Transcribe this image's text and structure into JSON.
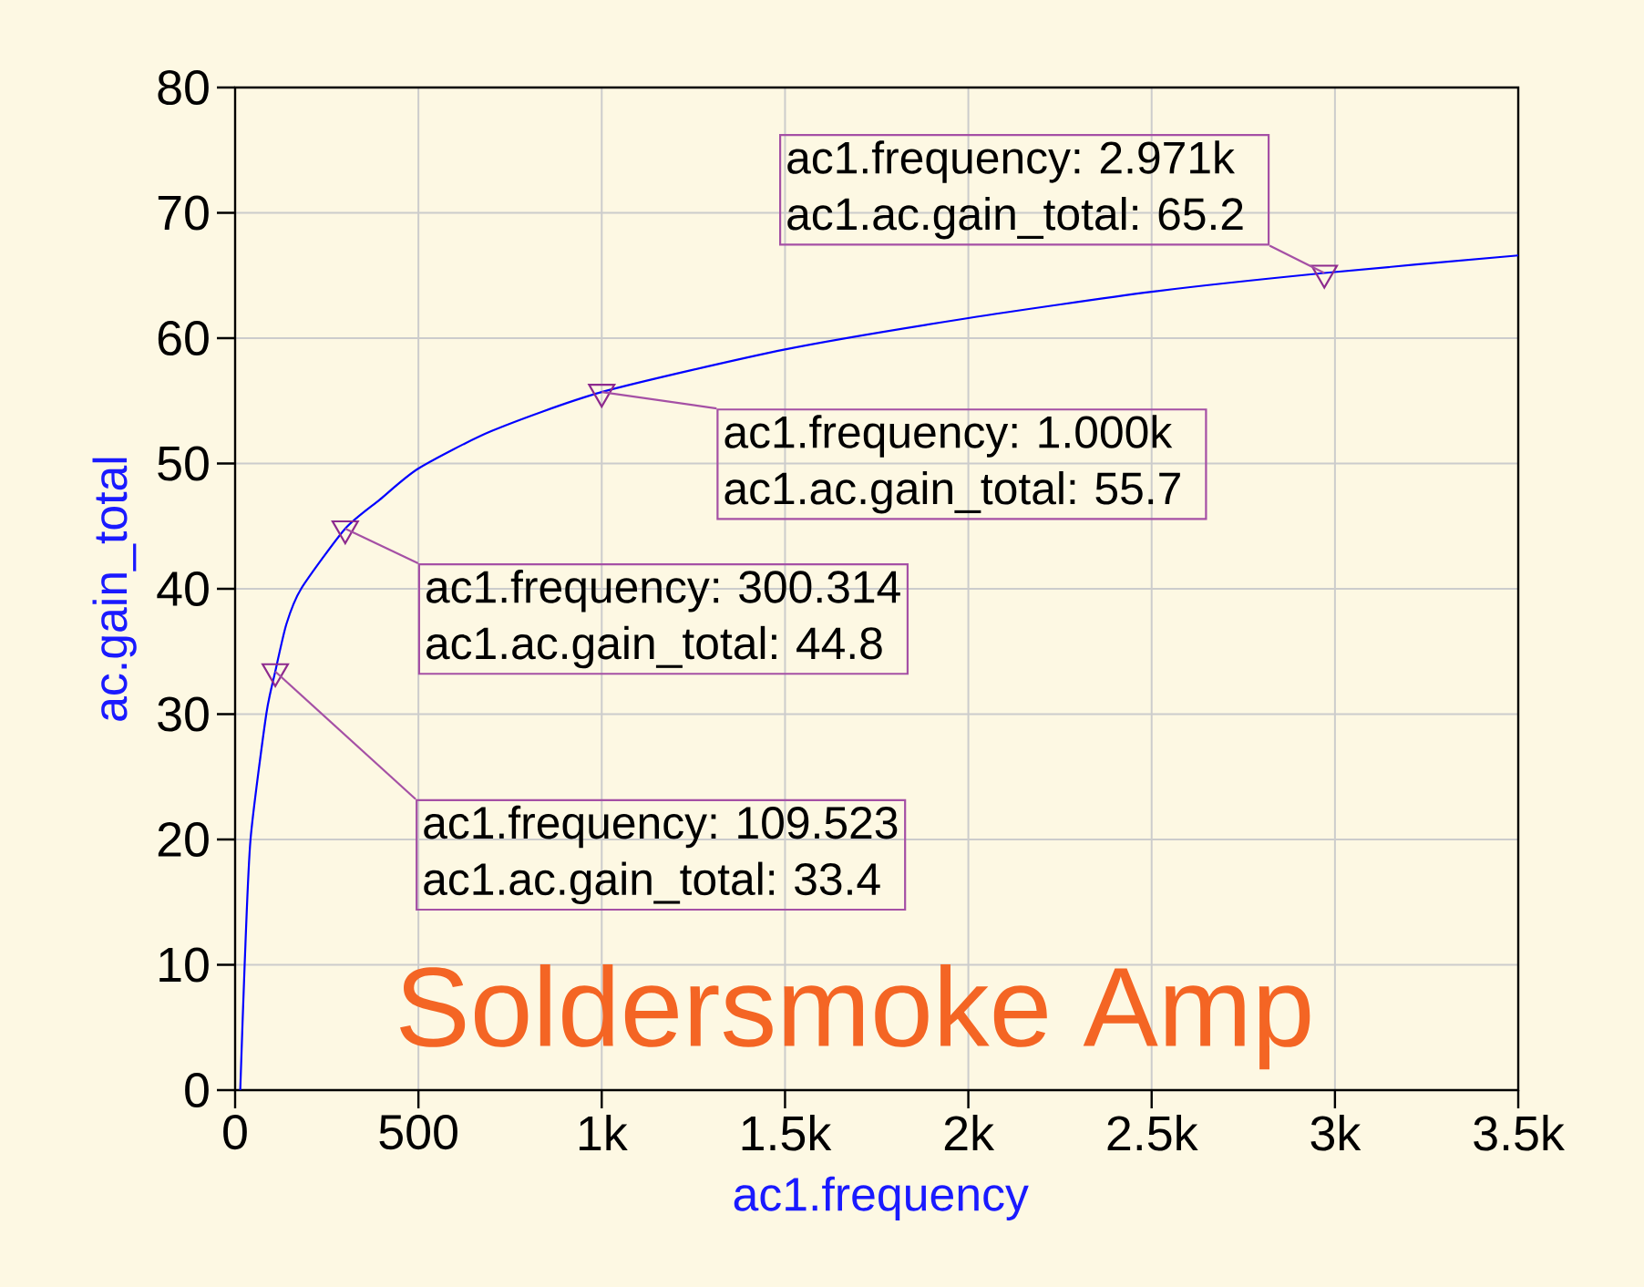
{
  "chart_data": {
    "type": "line",
    "title": "Soldersmoke Amp",
    "xlabel": "ac1.frequency",
    "ylabel": "ac.gain_total",
    "xlim": [
      0,
      3500
    ],
    "ylim": [
      0,
      80
    ],
    "xticks": [
      0,
      500,
      {
        "value": 1000,
        "label": "1k"
      },
      {
        "value": 1500,
        "label": "1.5k"
      },
      {
        "value": 2000,
        "label": "2k"
      },
      {
        "value": 2500,
        "label": "2.5k"
      },
      {
        "value": 3000,
        "label": "3k"
      },
      {
        "value": 3500,
        "label": "3.5k"
      }
    ],
    "yticks": [
      0,
      10,
      20,
      30,
      40,
      50,
      60,
      70,
      80
    ],
    "grid": true,
    "series": [
      {
        "color": "#0000ff",
        "x": [
          14,
          26,
          42,
          85,
          109.523,
          140,
          180,
          300.314,
          394,
          500,
          700,
          1000,
          1500,
          2000,
          2500,
          2971,
          3500
        ],
        "values": [
          0,
          10,
          20,
          30,
          33.4,
          37.2,
          40,
          44.8,
          47.1,
          49.6,
          52.6,
          55.7,
          59.1,
          61.6,
          63.7,
          65.2,
          66.6
        ]
      },
      {
        "type": "scatter",
        "color": "#8e2a8e",
        "marker": "triangle",
        "x": [
          109.523,
          300.314,
          1000,
          2971
        ],
        "values": [
          33.4,
          44.8,
          55.7,
          65.2
        ]
      }
    ],
    "annotations": [
      {
        "text": "ac1.frequency: 109.523 ac1.ac.gain_total: 33.4",
        "x": 109.523,
        "y": 33.4
      },
      {
        "text": "ac1.frequency: 300.314 ac1.ac.gain_total: 44.8",
        "x": 300.314,
        "y": 44.8
      },
      {
        "text": "ac1.frequency: 1.000k ac1.ac.gain_total: 55.7",
        "x": 1000,
        "y": 55.7
      },
      {
        "text": "ac1.frequency: 2.971k ac1.ac.gain_total: 65.2",
        "x": 2971,
        "y": 65.2
      }
    ]
  }
}
